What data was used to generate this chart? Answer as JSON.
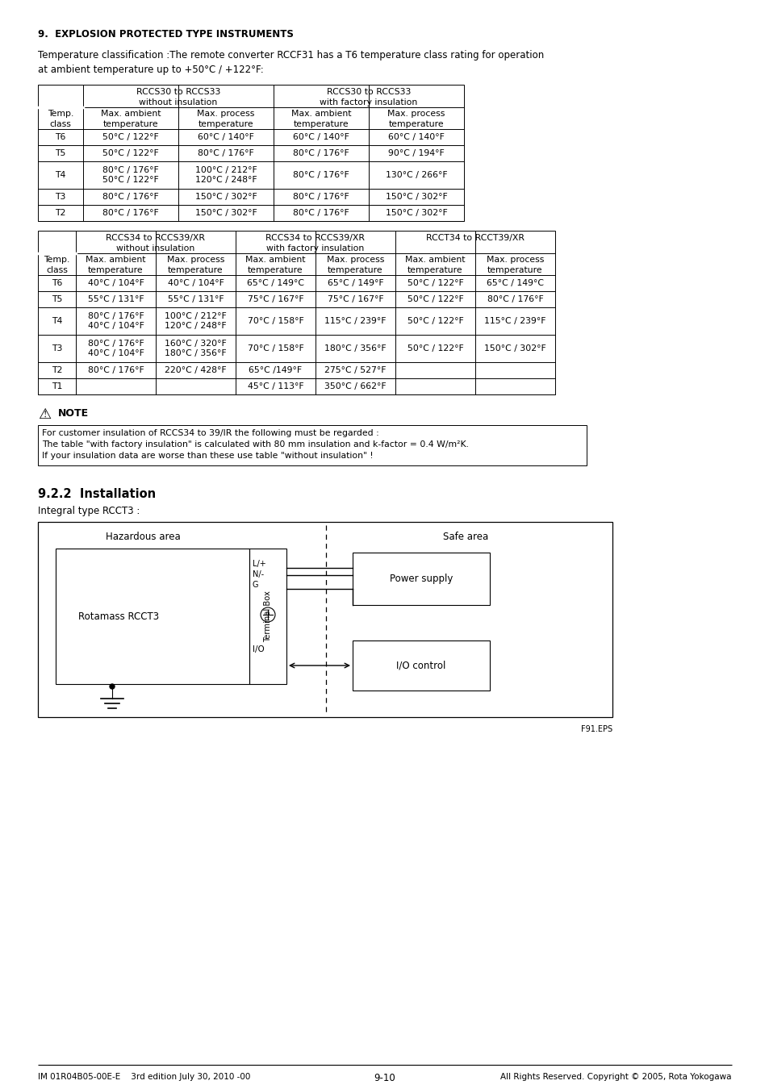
{
  "page_bg": "#ffffff",
  "section_title": "9.  EXPLOSION PROTECTED TYPE INSTRUMENTS",
  "intro_text": "Temperature classification :The remote converter RCCF31 has a T6 temperature class rating for operation\nat ambient temperature up to +50°C / +122°F:",
  "table1_header1_left": "RCCS30 to RCCS33\nwithout insulation",
  "table1_header1_right": "RCCS30 to RCCS33\nwith factory insulation",
  "table1_col2_headers": [
    "Temp.\nclass",
    "Max. ambient\ntemperature",
    "Max. process\ntemperature",
    "Max. ambient\ntemperature",
    "Max. process\ntemperature"
  ],
  "table1_rows": [
    [
      "T6",
      "50°C / 122°F",
      "60°C / 140°F",
      "60°C / 140°F",
      "60°C / 140°F"
    ],
    [
      "T5",
      "50°C / 122°F",
      "80°C / 176°F",
      "80°C / 176°F",
      "90°C / 194°F"
    ],
    [
      "T4",
      "80°C / 176°F\n50°C / 122°F",
      "100°C / 212°F\n120°C / 248°F",
      "80°C / 176°F",
      "130°C / 266°F"
    ],
    [
      "T3",
      "80°C / 176°F",
      "150°C / 302°F",
      "80°C / 176°F",
      "150°C / 302°F"
    ],
    [
      "T2",
      "80°C / 176°F",
      "150°C / 302°F",
      "80°C / 176°F",
      "150°C / 302°F"
    ]
  ],
  "table2_header1": [
    "RCCS34 to RCCS39/XR\nwithout insulation",
    "RCCS34 to RCCS39/XR\nwith factory insulation",
    "RCCT34 to RCCT39/XR"
  ],
  "table2_col2_headers": [
    "Temp.\nclass",
    "Max. ambient\ntemperature",
    "Max. process\ntemperature",
    "Max. ambient\ntemperature",
    "Max. process\ntemperature",
    "Max. ambient\ntemperature",
    "Max. process\ntemperature"
  ],
  "table2_rows": [
    [
      "T6",
      "40°C / 104°F",
      "40°C / 104°F",
      "65°C / 149°C",
      "65°C / 149°F",
      "50°C / 122°F",
      "65°C / 149°C"
    ],
    [
      "T5",
      "55°C / 131°F",
      "55°C / 131°F",
      "75°C / 167°F",
      "75°C / 167°F",
      "50°C / 122°F",
      "80°C / 176°F"
    ],
    [
      "T4",
      "80°C / 176°F\n40°C / 104°F",
      "100°C / 212°F\n120°C / 248°F",
      "70°C / 158°F",
      "115°C / 239°F",
      "50°C / 122°F",
      "115°C / 239°F"
    ],
    [
      "T3",
      "80°C / 176°F\n40°C / 104°F",
      "160°C / 320°F\n180°C / 356°F",
      "70°C / 158°F",
      "180°C / 356°F",
      "50°C / 122°F",
      "150°C / 302°F"
    ],
    [
      "T2",
      "80°C / 176°F",
      "220°C / 428°F",
      "65°C /149°F",
      "275°C / 527°F",
      "",
      ""
    ],
    [
      "T1",
      "",
      "",
      "45°C / 113°F",
      "350°C / 662°F",
      "",
      ""
    ]
  ],
  "note_text": "For customer insulation of RCCS34 to 39/IR the following must be regarded :\nThe table \"with factory insulation\" is calculated with 80 mm insulation and k-factor = 0.4 W/m²K.\nIf your insulation data are worse than these use table \"without insulation\" !",
  "section922_title": "9.2.2  Installation",
  "integral_text": "Integral type RCCT3 :",
  "footer_left": "IM 01R04B05-00E-E    3rd edition July 30, 2010 -00",
  "footer_center": "9-10",
  "footer_right": "All Rights Reserved. Copyright © 2005, Rota Yokogawa"
}
